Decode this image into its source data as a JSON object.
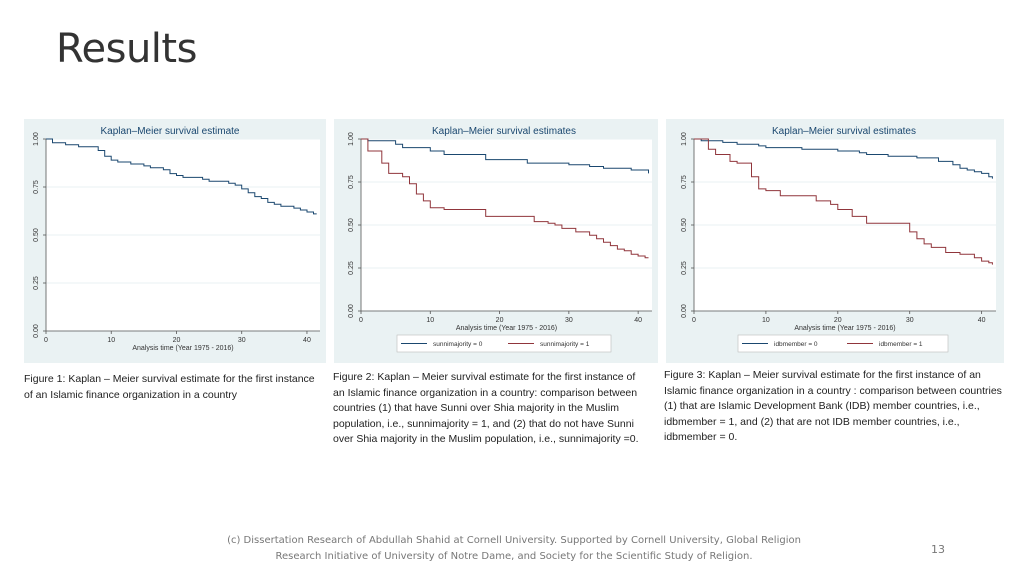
{
  "slide": {
    "title": "Results",
    "page_number": "13",
    "footer": "(c) Dissertation Research of Abdullah Shahid at Cornell University. Supported by Cornell University, Global Religion Research Initiative of University of Notre Dame, and Society for the Scientific Study of Religion."
  },
  "colors": {
    "panel_background": "#eaf2f3",
    "plot_background": "#ffffff",
    "series_navy": "#1a476f",
    "series_red": "#90353b",
    "title_text": "#1a476f",
    "grid": "#eaf2f3"
  },
  "captions": [
    "Figure 1: Kaplan – Meier survival estimate for the first instance of an Islamic finance organization in a country",
    "Figure 2: Kaplan – Meier survival estimate for the first instance of an Islamic finance organization in a country: comparison between countries (1) that have Sunni over Shia majority in the Muslim population, i.e., sunnimajority = 1, and (2) that do not have Sunni over Shia majority in the Muslim population, i.e., sunnimajority =0.",
    "Figure 3: Kaplan – Meier survival estimate for the first instance of an Islamic finance organization in a country : comparison between countries (1) that are Islamic Development Bank (IDB) member countries, i.e., idbmember = 1, and (2) that are not IDB member countries, i.e., idbmember = 0."
  ],
  "chart_data": [
    {
      "type": "line",
      "step": true,
      "title": "Kaplan–Meier survival estimate",
      "xlabel": "Analysis time (Year 1975 - 2016)",
      "ylabel": "",
      "xlim": [
        0,
        42
      ],
      "ylim": [
        0,
        1
      ],
      "xticks": [
        0,
        10,
        20,
        30,
        40
      ],
      "yticks": [
        0,
        0.25,
        0.5,
        0.75,
        1
      ],
      "ytick_labels": [
        "0.00",
        "0.25",
        "0.50",
        "0.75",
        "1.00"
      ],
      "grid": true,
      "series": [
        {
          "name": "",
          "color": "#1a476f",
          "x": [
            0,
            1,
            3,
            5,
            8,
            9,
            10,
            11,
            13,
            15,
            16,
            18,
            19,
            20,
            21,
            23,
            24,
            25,
            26,
            27,
            28,
            29,
            30,
            31,
            32,
            33,
            34,
            35,
            36,
            37,
            38,
            39,
            40,
            41,
            41.5
          ],
          "y": [
            1.0,
            0.98,
            0.97,
            0.96,
            0.94,
            0.91,
            0.89,
            0.88,
            0.87,
            0.86,
            0.85,
            0.84,
            0.82,
            0.81,
            0.8,
            0.8,
            0.79,
            0.78,
            0.78,
            0.78,
            0.77,
            0.76,
            0.74,
            0.72,
            0.7,
            0.69,
            0.67,
            0.66,
            0.65,
            0.65,
            0.64,
            0.63,
            0.62,
            0.61,
            0.61
          ]
        }
      ]
    },
    {
      "type": "line",
      "step": true,
      "title": "Kaplan–Meier survival estimates",
      "xlabel": "Analysis time (Year 1975 - 2016)",
      "ylabel": "",
      "xlim": [
        0,
        42
      ],
      "ylim": [
        0,
        1
      ],
      "xticks": [
        0,
        10,
        20,
        30,
        40
      ],
      "yticks": [
        0,
        0.25,
        0.5,
        0.75,
        1
      ],
      "ytick_labels": [
        "0.00",
        "0.25",
        "0.50",
        "0.75",
        "1.00"
      ],
      "grid": true,
      "legend": "bottom",
      "series": [
        {
          "name": "sunnimajority = 0",
          "color": "#1a476f",
          "x": [
            0,
            1,
            5,
            6,
            10,
            12,
            18,
            24,
            30,
            33,
            35,
            39,
            41.5
          ],
          "y": [
            1.0,
            0.99,
            0.97,
            0.95,
            0.93,
            0.91,
            0.88,
            0.86,
            0.85,
            0.84,
            0.83,
            0.82,
            0.8
          ]
        },
        {
          "name": "sunnimajority = 1",
          "color": "#90353b",
          "x": [
            0,
            1,
            3,
            4,
            6,
            7,
            8,
            9,
            10,
            12,
            17,
            18,
            24,
            25,
            27,
            28,
            29,
            31,
            33,
            34,
            35,
            36,
            37,
            38,
            39,
            40,
            41,
            41.5
          ],
          "y": [
            1.0,
            0.93,
            0.86,
            0.8,
            0.78,
            0.74,
            0.68,
            0.64,
            0.6,
            0.59,
            0.59,
            0.55,
            0.55,
            0.52,
            0.51,
            0.5,
            0.48,
            0.46,
            0.44,
            0.42,
            0.4,
            0.38,
            0.36,
            0.35,
            0.33,
            0.32,
            0.31,
            0.31
          ]
        }
      ]
    },
    {
      "type": "line",
      "step": true,
      "title": "Kaplan–Meier survival estimates",
      "xlabel": "Analysis time (Year 1975 - 2016)",
      "ylabel": "",
      "xlim": [
        0,
        42
      ],
      "ylim": [
        0,
        1
      ],
      "xticks": [
        0,
        10,
        20,
        30,
        40
      ],
      "yticks": [
        0,
        0.25,
        0.5,
        0.75,
        1
      ],
      "ytick_labels": [
        "0.00",
        "0.25",
        "0.50",
        "0.75",
        "1.00"
      ],
      "grid": true,
      "legend": "bottom",
      "series": [
        {
          "name": "idbmember = 0",
          "color": "#1a476f",
          "x": [
            0,
            1,
            4,
            6,
            9,
            10,
            15,
            20,
            23,
            24,
            27,
            31,
            34,
            36,
            37,
            38,
            39,
            40,
            41,
            41.5
          ],
          "y": [
            1.0,
            0.99,
            0.98,
            0.97,
            0.96,
            0.95,
            0.94,
            0.93,
            0.92,
            0.91,
            0.9,
            0.89,
            0.87,
            0.85,
            0.83,
            0.82,
            0.81,
            0.8,
            0.78,
            0.77
          ]
        },
        {
          "name": "idbmember = 1",
          "color": "#90353b",
          "x": [
            0,
            2,
            3,
            5,
            6,
            8,
            9,
            10,
            12,
            17,
            19,
            20,
            22,
            24,
            28,
            30,
            31,
            32,
            33,
            35,
            37,
            39,
            40,
            41,
            41.5
          ],
          "y": [
            1.0,
            0.94,
            0.91,
            0.87,
            0.86,
            0.78,
            0.71,
            0.7,
            0.67,
            0.64,
            0.62,
            0.59,
            0.55,
            0.51,
            0.51,
            0.46,
            0.42,
            0.39,
            0.37,
            0.34,
            0.33,
            0.31,
            0.29,
            0.28,
            0.27
          ]
        }
      ]
    }
  ]
}
